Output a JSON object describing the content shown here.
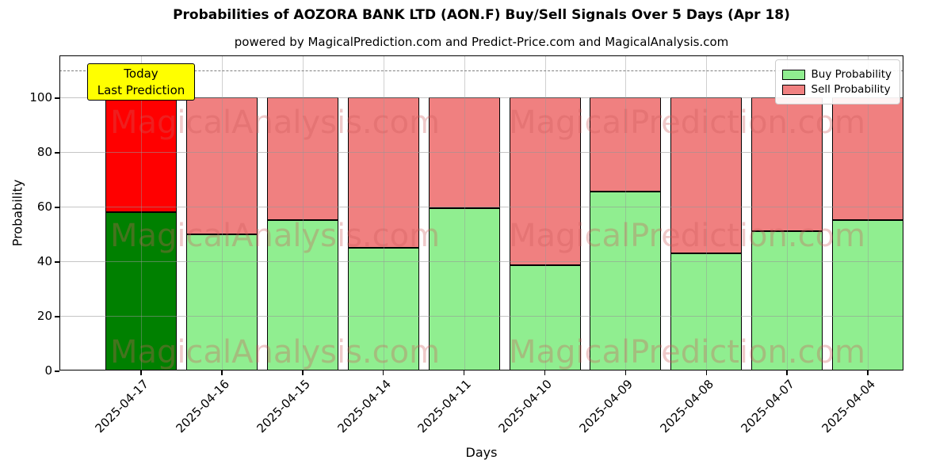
{
  "title": "Probabilities of AOZORA BANK LTD (AON.F) Buy/Sell Signals Over 5 Days (Apr 18)",
  "subtitle": "powered by MagicalPrediction.com and Predict-Price.com and MagicalAnalysis.com",
  "xlabel": "Days",
  "ylabel": "Probability",
  "legend": {
    "buy_label": "Buy Probability",
    "sell_label": "Sell Probability"
  },
  "annotation": {
    "line1": "Today",
    "line2": "Last Prediction"
  },
  "watermarks": {
    "left_text": "MagicalAnalysis.com",
    "right_text": "MagicalPrediction.com"
  },
  "colors": {
    "buy": "#90ee90",
    "sell": "#f08080",
    "buy_today": "#008000",
    "sell_today": "#ff0000",
    "bar_edge": "#000000",
    "annotation_bg": "#ffff00",
    "grid": "#b0b0b0",
    "dashed_line": "#808080",
    "watermark": "rgba(205,92,92,0.33)"
  },
  "chart_data": {
    "type": "bar",
    "stacked": true,
    "title": "Probabilities of AOZORA BANK LTD (AON.F) Buy/Sell Signals Over 5 Days (Apr 18)",
    "xlabel": "Days",
    "ylabel": "Probability",
    "categories": [
      "2025-04-17",
      "2025-04-16",
      "2025-04-15",
      "2025-04-14",
      "2025-04-11",
      "2025-04-10",
      "2025-04-09",
      "2025-04-08",
      "2025-04-07",
      "2025-04-04"
    ],
    "series": [
      {
        "name": "Buy Probability",
        "values": [
          58,
          50,
          55,
          45,
          59.5,
          38.5,
          65.5,
          43,
          51,
          55
        ]
      },
      {
        "name": "Sell Probability",
        "values": [
          42,
          50,
          45,
          55,
          40.5,
          61.5,
          34.5,
          57,
          49,
          45
        ]
      }
    ],
    "highlight_index": 0,
    "highlight_note": "Today Last Prediction",
    "yticks": [
      0,
      20,
      40,
      60,
      80,
      100
    ],
    "ylim": [
      0,
      115.4
    ],
    "dashed_line_y": 110,
    "grid": true,
    "legend_position": "upper right"
  }
}
